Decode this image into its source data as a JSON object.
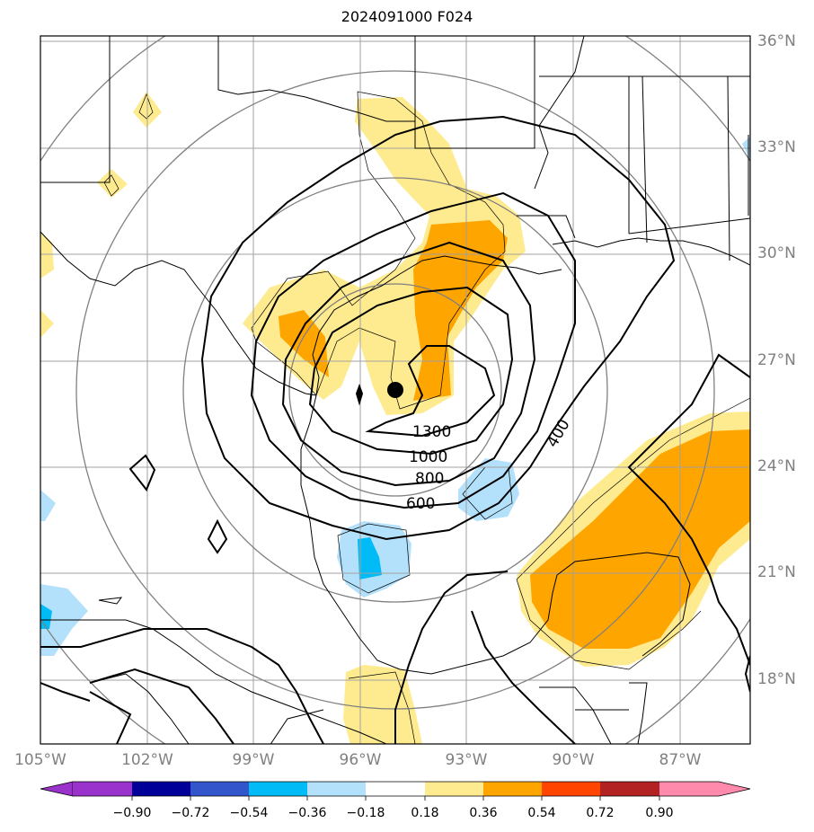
{
  "title": "2024091000 F024",
  "map": {
    "projection": "stereographic / regional",
    "extent": {
      "lon_min": -105,
      "lon_max": -85,
      "lat_min": 16,
      "lat_max": 36
    },
    "storm_center": {
      "lon": -95,
      "lat": 26.2,
      "marker": "black-filled-circle"
    },
    "grid": "on",
    "lat_labels": [
      "36°N",
      "33°N",
      "30°N",
      "27°N",
      "24°N",
      "21°N",
      "18°N"
    ],
    "lon_labels": [
      "105°W",
      "102°W",
      "99°W",
      "96°W",
      "93°W",
      "90°W",
      "87°W"
    ],
    "contour_labels": [
      "1300",
      "1000",
      "800",
      "600",
      "400"
    ],
    "colors": {
      "land_lines": "#000000",
      "grid": "#a0a0a0",
      "range_rings": "#808080",
      "contours": "#000000"
    }
  },
  "colorbar": {
    "ticks": [
      "−0.90",
      "−0.72",
      "−0.54",
      "−0.36",
      "−0.18",
      "0.18",
      "0.36",
      "0.54",
      "0.72",
      "0.90"
    ],
    "colors": [
      "#9933cc",
      "#000099",
      "#3355cc",
      "#00bbf5",
      "#b3e0fa",
      "#ffffff",
      "#ffeb8f",
      "#ffa500",
      "#ff4500",
      "#b22222",
      "#ff8aac"
    ],
    "extend": "both"
  }
}
